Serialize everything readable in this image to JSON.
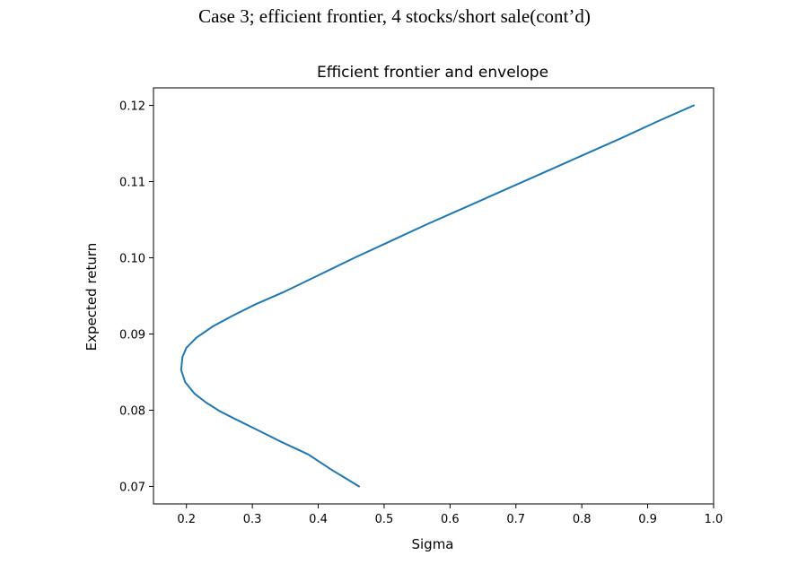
{
  "slide": {
    "title": "Case 3; efficient frontier, 4 stocks/short sale(cont’d)"
  },
  "chart_data": {
    "type": "line",
    "title": "Efficient frontier and envelope",
    "xlabel": "Sigma",
    "ylabel": "Expected return",
    "xlim": [
      0.15,
      1.0
    ],
    "ylim": [
      0.0677,
      0.1223
    ],
    "xticks": [
      0.2,
      0.3,
      0.4,
      0.5,
      0.6,
      0.7,
      0.8,
      0.9,
      1.0
    ],
    "xtick_labels": [
      "0.2",
      "0.3",
      "0.4",
      "0.5",
      "0.6",
      "0.7",
      "0.8",
      "0.9",
      "1.0"
    ],
    "yticks": [
      0.07,
      0.08,
      0.09,
      0.1,
      0.11,
      0.12
    ],
    "ytick_labels": [
      "0.07",
      "0.08",
      "0.09",
      "0.10",
      "0.11",
      "0.12"
    ],
    "grid": false,
    "legend": "none",
    "series": [
      {
        "color": "#1f77b4",
        "x": [
          0.462,
          0.42,
          0.385,
          0.345,
          0.31,
          0.275,
          0.25,
          0.23,
          0.212,
          0.198,
          0.192,
          0.194,
          0.2,
          0.215,
          0.24,
          0.27,
          0.305,
          0.35,
          0.4,
          0.455,
          0.51,
          0.565,
          0.62,
          0.68,
          0.74,
          0.8,
          0.86,
          0.915,
          0.97
        ],
        "y": [
          0.07,
          0.0722,
          0.0742,
          0.0758,
          0.0773,
          0.0788,
          0.0799,
          0.081,
          0.0822,
          0.0837,
          0.0853,
          0.087,
          0.0882,
          0.0895,
          0.091,
          0.0924,
          0.0939,
          0.0956,
          0.0977,
          0.1,
          0.1022,
          0.1044,
          0.1065,
          0.1088,
          0.1111,
          0.1134,
          0.1157,
          0.1179,
          0.12
        ]
      }
    ]
  }
}
